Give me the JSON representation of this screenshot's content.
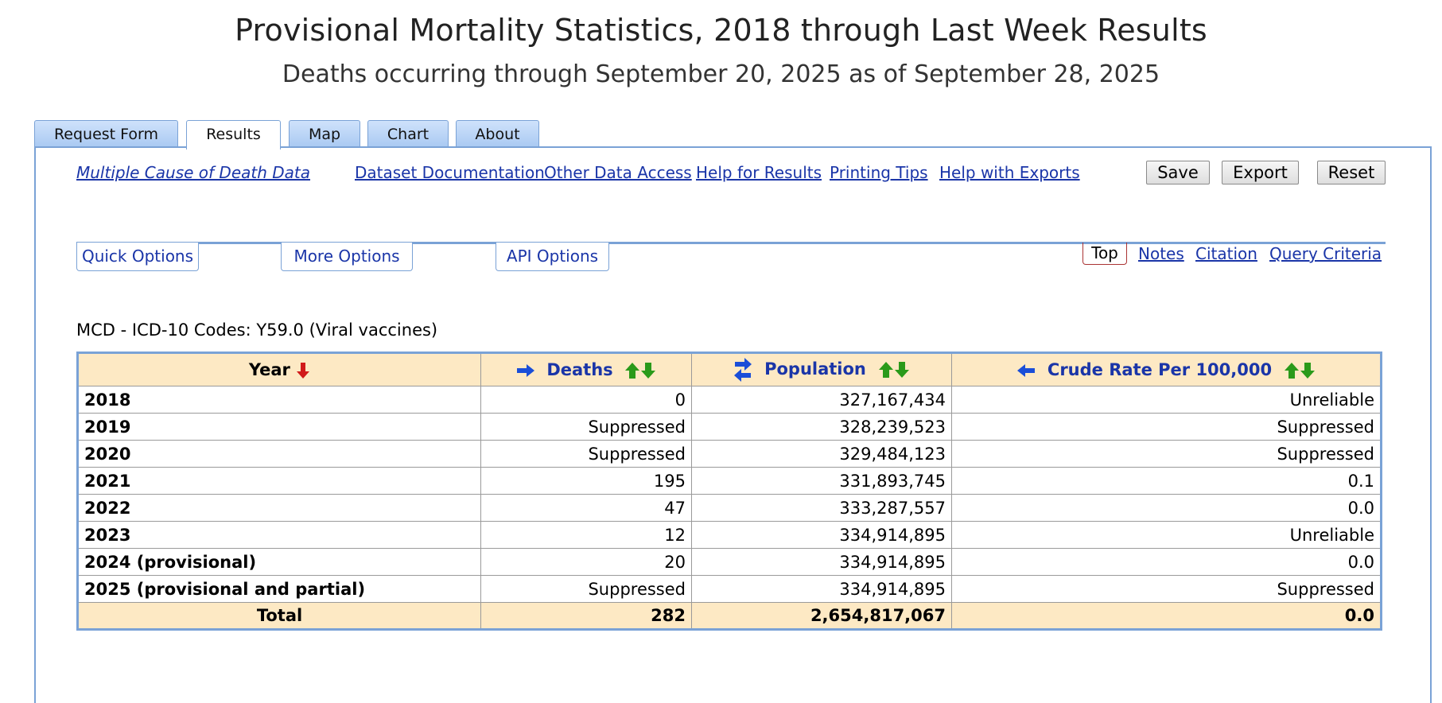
{
  "header": {
    "title": "Provisional Mortality Statistics, 2018 through Last Week Results",
    "subtitle": "Deaths occurring through September 20, 2025 as of September 28, 2025"
  },
  "tabs": [
    {
      "label": "Request Form"
    },
    {
      "label": "Results",
      "active": true
    },
    {
      "label": "Map"
    },
    {
      "label": "Chart"
    },
    {
      "label": "About"
    }
  ],
  "links": {
    "dataset": "Multiple Cause of Death Data",
    "documentation": "Dataset Documentation",
    "other_access": "Other Data Access",
    "help_results": "Help for Results",
    "printing_tips": "Printing Tips",
    "help_exports": "Help with Exports"
  },
  "buttons": {
    "save": "Save",
    "export": "Export",
    "reset": "Reset"
  },
  "options": {
    "quick": "Quick Options",
    "more": "More Options",
    "api": "API Options"
  },
  "nav": {
    "top": "Top",
    "notes": "Notes",
    "citation": "Citation",
    "query_criteria": "Query Criteria"
  },
  "caption": "MCD - ICD-10 Codes: Y59.0 (Viral vaccines)",
  "table": {
    "columns": [
      "Year",
      "Deaths",
      "Population",
      "Crude Rate Per 100,000"
    ],
    "rows": [
      {
        "year": "2018",
        "deaths": "0",
        "population": "327,167,434",
        "rate": "Unreliable"
      },
      {
        "year": "2019",
        "deaths": "Suppressed",
        "population": "328,239,523",
        "rate": "Suppressed"
      },
      {
        "year": "2020",
        "deaths": "Suppressed",
        "population": "329,484,123",
        "rate": "Suppressed"
      },
      {
        "year": "2021",
        "deaths": "195",
        "population": "331,893,745",
        "rate": "0.1"
      },
      {
        "year": "2022",
        "deaths": "47",
        "population": "333,287,557",
        "rate": "0.0"
      },
      {
        "year": "2023",
        "deaths": "12",
        "population": "334,914,895",
        "rate": "Unreliable"
      },
      {
        "year": "2024 (provisional)",
        "deaths": "20",
        "population": "334,914,895",
        "rate": "0.0"
      },
      {
        "year": "2025 (provisional and partial)",
        "deaths": "Suppressed",
        "population": "334,914,895",
        "rate": "Suppressed"
      }
    ],
    "total": {
      "label": "Total",
      "deaths": "282",
      "population": "2,654,817,067",
      "rate": "0.0"
    }
  },
  "icons": {
    "sort_desc": "red-down-arrow-icon",
    "move_right": "blue-right-arrow-icon",
    "swap": "blue-swap-arrows-icon",
    "move_left": "blue-left-arrow-icon",
    "sort_toggle": "green-up-down-arrows-icon"
  },
  "colors": {
    "accent_border": "#7aa2d6",
    "link": "#1a35a8",
    "header_bg": "#fde9c4",
    "sort_red": "#d11a1a",
    "sort_green": "#2a9a1a"
  }
}
